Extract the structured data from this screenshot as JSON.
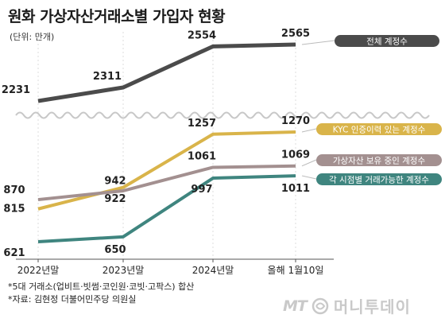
{
  "title": "원화 가상자산거래소별 가입자 현황",
  "unit": "(단위: 만개)",
  "notes": [
    "*5대 거래소(업비트·빗썸·코인원·코빗·고팍스) 합산",
    "*자료: 김현정 더불어민주당 의원실"
  ],
  "logo": {
    "mark": "MT",
    "name": "머니투데이"
  },
  "colors": {
    "total": "#4b4b4b",
    "kyc": "#d9b44a",
    "holding": "#a39090",
    "tradable": "#3f857f",
    "grid": "#dddddd",
    "axis": "#555555"
  },
  "chart_data": {
    "type": "line",
    "title": "원화 가상자산거래소별 가입자 현황",
    "unit": "(단위: 만개)",
    "categories": [
      "2022년말",
      "2023년말",
      "2024년말",
      "올해 1월10일"
    ],
    "axis_break": "wavy line between the upper series and the lower series",
    "grid": "vertical dotted lines at each category",
    "legend": "labels placed at the right end of each line",
    "series": [
      {
        "name": "전체 계정수",
        "values": [
          2231,
          2311,
          2554,
          2565
        ],
        "color": "#4b4b4b"
      },
      {
        "name": "KYC 인증이력 있는 계정수",
        "values": [
          815,
          942,
          1257,
          1270
        ],
        "color": "#d9b44a"
      },
      {
        "name": "가상자산 보유 중인 계정수",
        "values": [
          870,
          922,
          1061,
          1069
        ],
        "color": "#a39090"
      },
      {
        "name": "각 시점별 거래가능한 계정수",
        "values": [
          621,
          650,
          997,
          1011
        ],
        "color": "#3f857f"
      }
    ]
  }
}
